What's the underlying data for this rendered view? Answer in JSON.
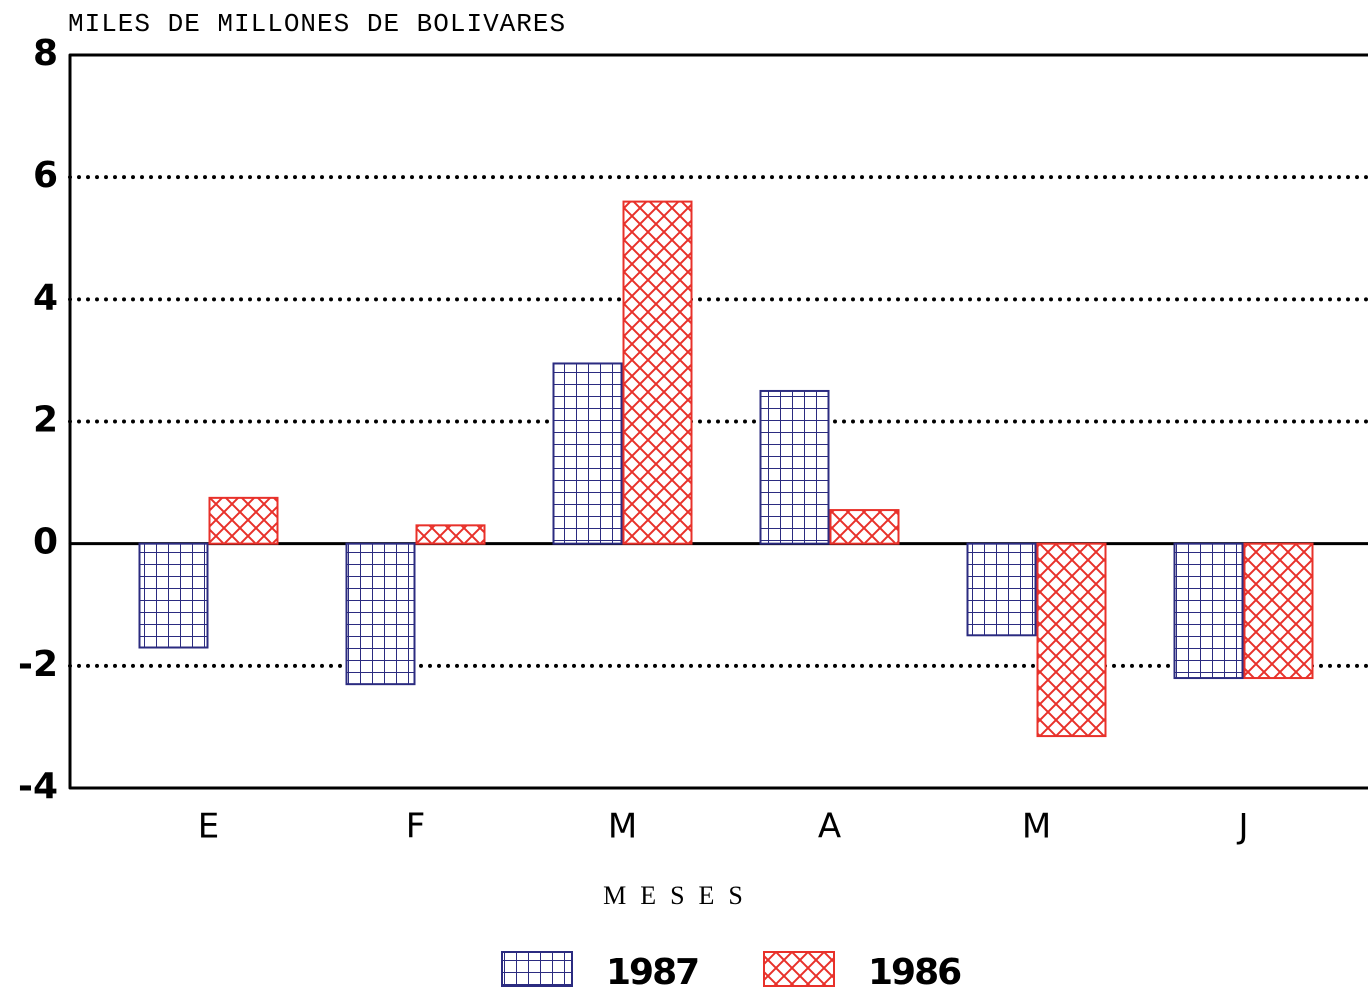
{
  "chart_data": {
    "type": "bar",
    "title": "MILES DE MILLONES DE BOLIVARES",
    "x_label": "MESES",
    "categories": [
      "E",
      "F",
      "M",
      "A",
      "M",
      "J"
    ],
    "series": [
      {
        "name": "1987",
        "color": "#2b2b80",
        "values": [
          -1.7,
          -2.3,
          2.95,
          2.5,
          -1.5,
          -2.2
        ]
      },
      {
        "name": "1986",
        "color": "#e8312a",
        "values": [
          0.75,
          0.3,
          5.6,
          0.55,
          -3.15,
          -2.2
        ]
      }
    ],
    "ylim": [
      -4,
      8
    ],
    "yticks": [
      -4,
      -2,
      0,
      2,
      4,
      6,
      8
    ],
    "grid": true,
    "legend": "bottom"
  }
}
